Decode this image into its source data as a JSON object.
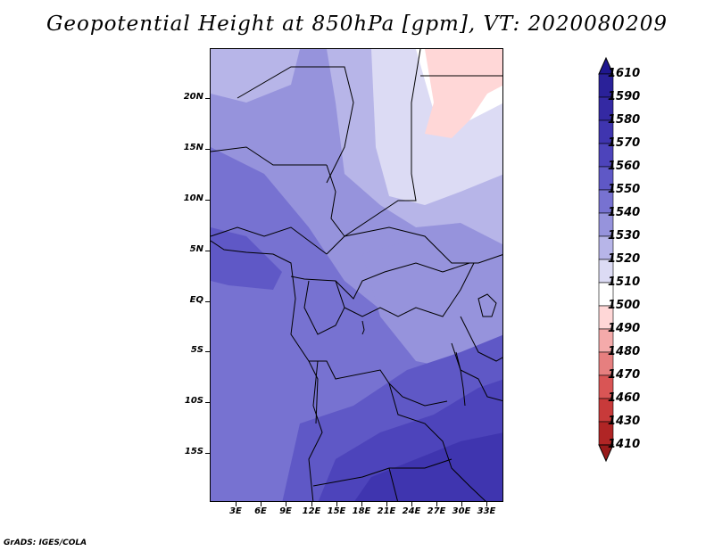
{
  "title": "Geopotential Height at 850hPa [gpm], VT: 2020080209",
  "footer": "GrADS: IGES/COLA",
  "lat_labels": [
    "20N",
    "15N",
    "10N",
    "5N",
    "EQ",
    "5S",
    "10S",
    "15S"
  ],
  "lon_labels": [
    "3E",
    "6E",
    "9E",
    "12E",
    "15E",
    "18E",
    "21E",
    "24E",
    "27E",
    "30E",
    "33E"
  ],
  "colorbar": {
    "levels": [
      "1610",
      "1590",
      "1580",
      "1570",
      "1560",
      "1550",
      "1540",
      "1530",
      "1520",
      "1510",
      "1500",
      "1490",
      "1480",
      "1470",
      "1460",
      "1430",
      "1410"
    ],
    "colors": [
      "#1f178f",
      "#2a2199",
      "#3429a3",
      "#3f35af",
      "#4d44bb",
      "#5f58c6",
      "#7772d1",
      "#9693dc",
      "#b7b5e8",
      "#dcdbf4",
      "#ffffff",
      "#ffd7d7",
      "#f4aaaa",
      "#e67f7f",
      "#d95555",
      "#c83a3a",
      "#b02525",
      "#981a1a"
    ]
  },
  "map_colors": {
    "c1490": "#ffd7d7",
    "c1500": "#ffffff",
    "c1510": "#dcdbf4",
    "c1520": "#b7b5e8",
    "c1530": "#9693dc",
    "c1540": "#7772d1",
    "c1550": "#5f58c6",
    "c1560": "#4d44bb",
    "c1570": "#3f35af"
  }
}
